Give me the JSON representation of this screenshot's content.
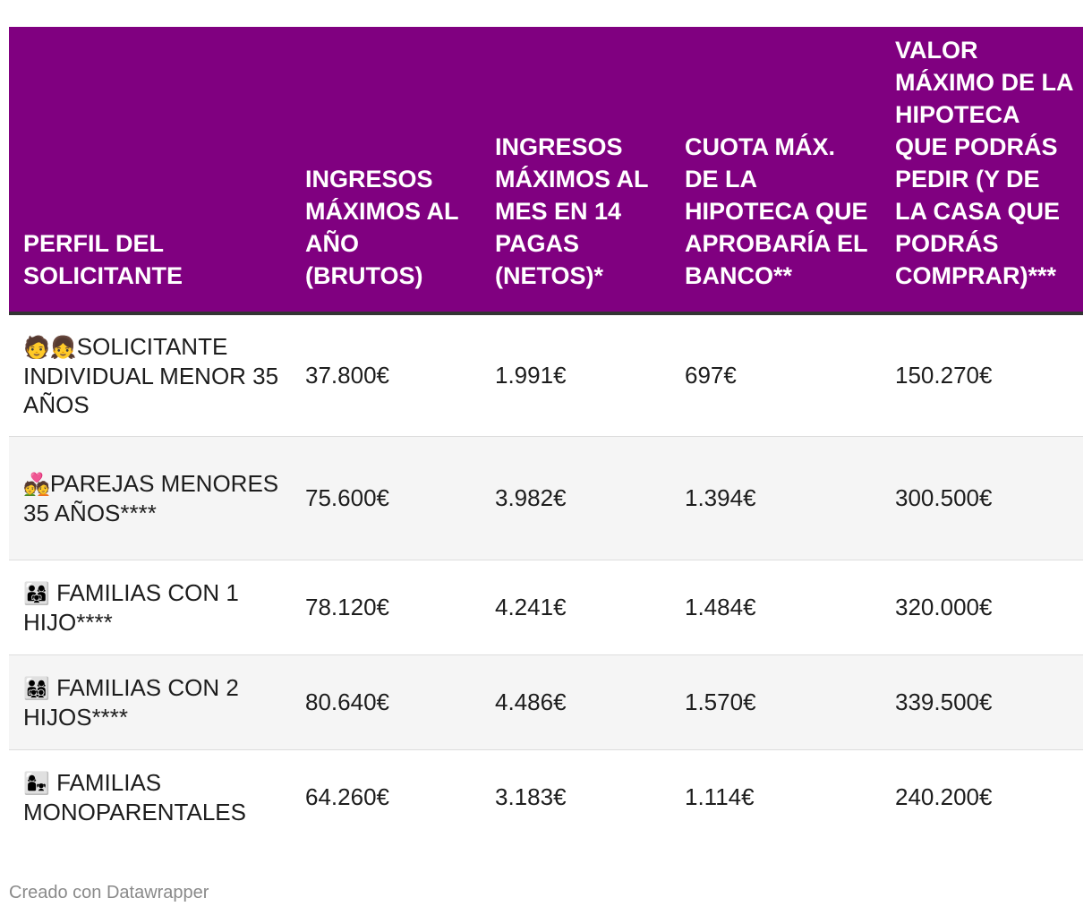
{
  "table": {
    "headers": [
      "PERFIL DEL SOLICITANTE",
      "INGRESOS MÁXIMOS AL AÑO (BRUTOS)",
      "INGRESOS MÁXIMOS AL MES EN 14 PAGAS (NETOS)*",
      "CUOTA MÁX. DE LA HIPOTECA QUE APROBARÍA EL BANCO**",
      "VALOR MÁXIMO DE LA HIPOTECA QUE PODRÁS PEDIR (Y DE LA CASA QUE PODRÁS COMPRAR)***"
    ],
    "rows": [
      {
        "icon": "🧑👧",
        "icon_name": "person-and-girl-icon",
        "profile": "SOLICITANTE INDIVIDUAL MENOR 35 AÑOS",
        "annual": "37.800€",
        "monthly": "1.991€",
        "quota": "697€",
        "max_value": "150.270€"
      },
      {
        "icon": "💑",
        "icon_name": "couple-with-heart-icon",
        "profile": "PAREJAS MENORES 35 AÑOS****",
        "annual": "75.600€",
        "monthly": "3.982€",
        "quota": "1.394€",
        "max_value": "300.500€"
      },
      {
        "icon": "👨‍👩‍👧",
        "icon_name": "family-one-child-icon",
        "profile": " FAMILIAS CON 1 HIJO****",
        "annual": "78.120€",
        "monthly": "4.241€",
        "quota": "1.484€",
        "max_value": "320.000€"
      },
      {
        "icon": "👨‍👩‍👧‍👦",
        "icon_name": "family-two-children-icon",
        "profile": " FAMILIAS CON 2 HIJOS****",
        "annual": "80.640€",
        "monthly": "4.486€",
        "quota": "1.570€",
        "max_value": "339.500€"
      },
      {
        "icon": "👩‍👧",
        "icon_name": "single-parent-family-icon",
        "profile": " FAMILIAS MONOPARENTALES",
        "annual": "64.260€",
        "monthly": "3.183€",
        "quota": "1.114€",
        "max_value": "240.200€"
      }
    ]
  },
  "footer": {
    "credit": "Creado con Datawrapper"
  },
  "colors": {
    "header_background": "#800080",
    "header_text": "#ffffff",
    "row_alt_background": "#f5f5f5",
    "footer_text": "#8a8a8a"
  }
}
